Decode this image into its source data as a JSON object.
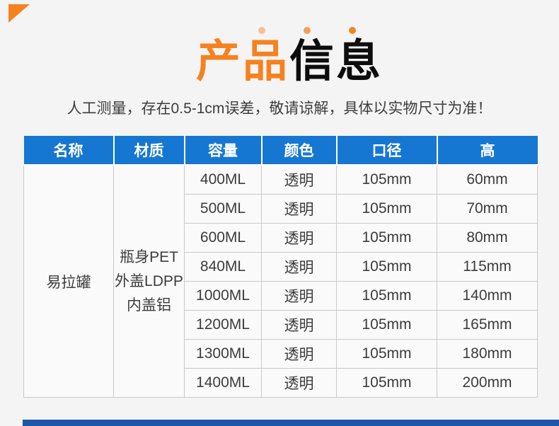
{
  "page": {
    "background_color": "#f4f4f5",
    "accent_orange": "#f5821f",
    "header_blue": "#1677d2",
    "bottom_bar_blue": "#1e56a8"
  },
  "header": {
    "title_orange": "产品",
    "title_black": "信息",
    "subtitle": "人工测量，存在0.5-1cm误差，敬请谅解，具体以实物尺寸为准！"
  },
  "table": {
    "headers": [
      "名称",
      "材质",
      "容量",
      "颜色",
      "口径",
      "高"
    ],
    "name": "易拉罐",
    "material": "瓶身PET\n外盖LDPP\n内盖铝",
    "rows": [
      {
        "capacity": "400ML",
        "color": "透明",
        "diameter": "105mm",
        "height": "60mm"
      },
      {
        "capacity": "500ML",
        "color": "透明",
        "diameter": "105mm",
        "height": "70mm"
      },
      {
        "capacity": "600ML",
        "color": "透明",
        "diameter": "105mm",
        "height": "80mm"
      },
      {
        "capacity": "840ML",
        "color": "透明",
        "diameter": "105mm",
        "height": "115mm"
      },
      {
        "capacity": "1000ML",
        "color": "透明",
        "diameter": "105mm",
        "height": "140mm"
      },
      {
        "capacity": "1200ML",
        "color": "透明",
        "diameter": "105mm",
        "height": "165mm"
      },
      {
        "capacity": "1300ML",
        "color": "透明",
        "diameter": "105mm",
        "height": "180mm"
      },
      {
        "capacity": "1400ML",
        "color": "透明",
        "diameter": "105mm",
        "height": "200mm"
      }
    ]
  }
}
